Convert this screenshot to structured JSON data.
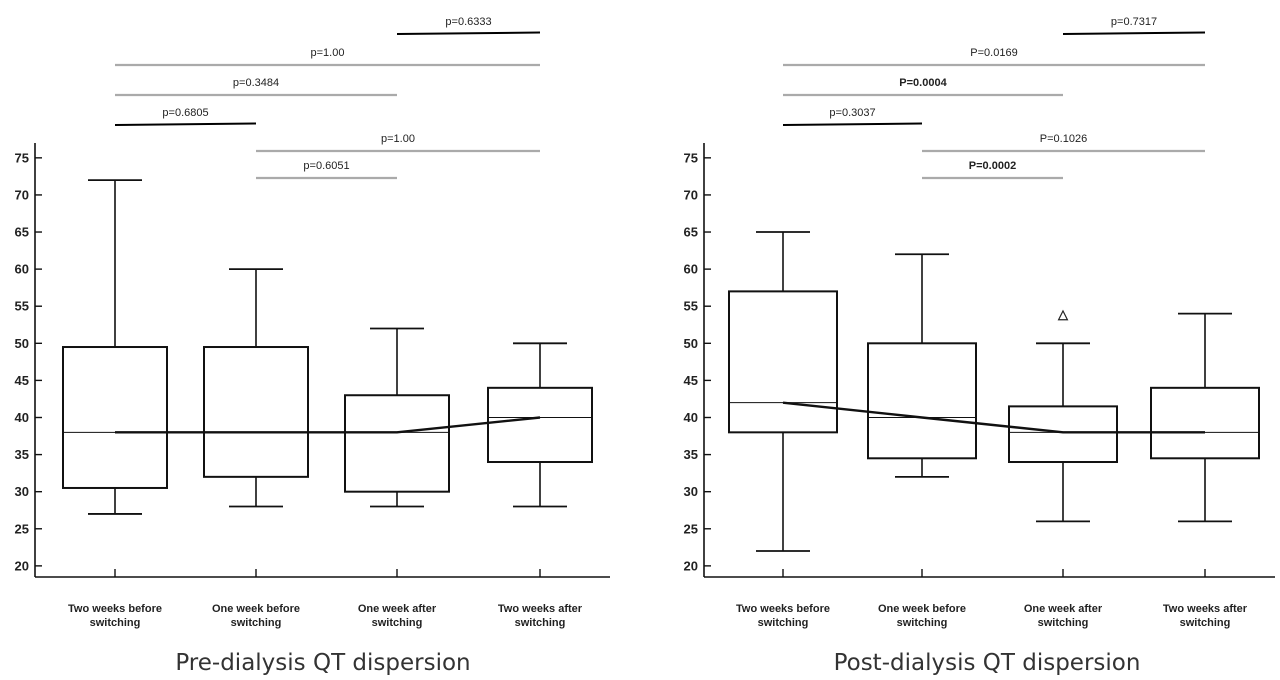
{
  "chart_data": [
    {
      "type": "boxplot",
      "title": "Pre-dialysis QT dispersion",
      "categories": [
        [
          "Two weeks before",
          "switching"
        ],
        [
          "One week before",
          "switching"
        ],
        [
          "One week after",
          "switching"
        ],
        [
          "Two weeks after",
          "switching"
        ]
      ],
      "yticks": [
        "20",
        "25",
        "30",
        "35",
        "40",
        "45",
        "50",
        "55",
        "60",
        "65",
        "70",
        "75"
      ],
      "ylim": [
        18.5,
        77
      ],
      "boxes": [
        {
          "min": 27,
          "q1": 30.5,
          "median": 38,
          "q3": 49.5,
          "max": 72
        },
        {
          "min": 28,
          "q1": 32,
          "median": 38,
          "q3": 49.5,
          "max": 60
        },
        {
          "min": 28,
          "q1": 30,
          "median": 38,
          "q3": 43,
          "max": 52
        },
        {
          "min": 28,
          "q1": 34,
          "median": 40,
          "q3": 44,
          "max": 50
        }
      ],
      "outliers": [],
      "comparisons_above": [
        {
          "from": 3,
          "to": 4,
          "label": "p=0.6333",
          "color": "#000000",
          "bold": false
        },
        {
          "from": 1,
          "to": 4,
          "label": "p=1.00",
          "color": "#aaaaaa",
          "bold": false
        },
        {
          "from": 1,
          "to": 3,
          "label": "p=0.3484",
          "color": "#aaaaaa",
          "bold": false
        },
        {
          "from": 1,
          "to": 2,
          "label": "p=0.6805",
          "color": "#000000",
          "bold": false
        }
      ],
      "comparisons_inside": [
        {
          "from": 2,
          "to": 4,
          "label": "p=1.00",
          "color": "#aaaaaa",
          "bold": false
        },
        {
          "from": 2,
          "to": 3,
          "label": "p=0.6051",
          "color": "#aaaaaa",
          "bold": false
        }
      ]
    },
    {
      "type": "boxplot",
      "title": "Post-dialysis QT dispersion",
      "categories": [
        [
          "Two weeks before",
          "switching"
        ],
        [
          "One week before",
          "switching"
        ],
        [
          "One week after",
          "switching"
        ],
        [
          "Two weeks after",
          "switching"
        ]
      ],
      "yticks": [
        "20",
        "25",
        "30",
        "35",
        "40",
        "45",
        "50",
        "55",
        "60",
        "65",
        "70",
        "75"
      ],
      "ylim": [
        18.5,
        77
      ],
      "boxes": [
        {
          "min": 22,
          "q1": 38,
          "median": 42,
          "q3": 57,
          "max": 65
        },
        {
          "min": 32,
          "q1": 34.5,
          "median": 40,
          "q3": 50,
          "max": 62
        },
        {
          "min": 26,
          "q1": 34,
          "median": 38,
          "q3": 41.5,
          "max": 50
        },
        {
          "min": 26,
          "q1": 34.5,
          "median": 38,
          "q3": 44,
          "max": 54
        }
      ],
      "outliers": [
        {
          "box": 3,
          "value": 54,
          "symbol": "△"
        }
      ],
      "comparisons_above": [
        {
          "from": 3,
          "to": 4,
          "label": "p=0.7317",
          "color": "#000000",
          "bold": false
        },
        {
          "from": 1,
          "to": 4,
          "label": "P=0.0169",
          "color": "#aaaaaa",
          "bold": false
        },
        {
          "from": 1,
          "to": 3,
          "label": "P=0.0004",
          "color": "#aaaaaa",
          "bold": true
        },
        {
          "from": 1,
          "to": 2,
          "label": "p=0.3037",
          "color": "#000000",
          "bold": false
        }
      ],
      "comparisons_inside": [
        {
          "from": 2,
          "to": 4,
          "label": "P=0.1026",
          "color": "#aaaaaa",
          "bold": false
        },
        {
          "from": 2,
          "to": 3,
          "label": "P=0.0002",
          "color": "#aaaaaa",
          "bold": true
        }
      ]
    }
  ]
}
